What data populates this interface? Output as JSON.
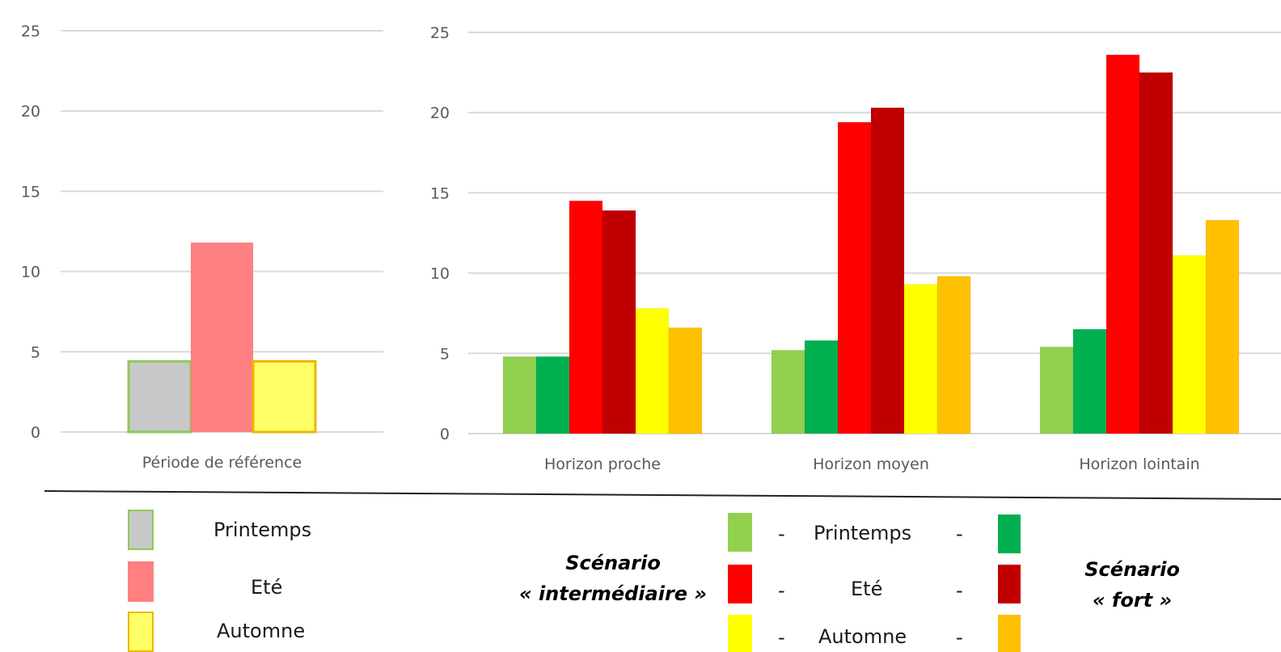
{
  "colors": {
    "ref_printemps": "#c8c8c8",
    "ref_printemps_border": "#8fc95a",
    "ref_ete": "#ff8080",
    "ref_automne": "#ffff66",
    "ref_automne_border": "#f0b400",
    "inter_printemps": "#92d050",
    "fort_printemps": "#00b050",
    "inter_ete": "#ff0000",
    "fort_ete": "#c00000",
    "inter_automne": "#ffff00",
    "fort_automne": "#ffc000"
  },
  "chart_data": [
    {
      "type": "bar",
      "categories": [
        "Période de référence"
      ],
      "series": [
        {
          "name": "Printemps",
          "values": [
            4.4
          ]
        },
        {
          "name": "Eté",
          "values": [
            11.8
          ]
        },
        {
          "name": "Automne",
          "values": [
            4.4
          ]
        }
      ],
      "ylim": [
        0,
        25
      ],
      "yticks": [
        0,
        5,
        10,
        15,
        20,
        25
      ],
      "grid": true
    },
    {
      "type": "bar",
      "categories": [
        "Horizon proche",
        "Horizon moyen",
        "Horizon lointain"
      ],
      "series": [
        {
          "name": "Printemps",
          "values": [
            4.8,
            5.2,
            5.4
          ]
        },
        {
          "name": "Printemps",
          "values": [
            4.8,
            5.8,
            6.5
          ]
        },
        {
          "name": "Eté",
          "values": [
            14.5,
            19.4,
            23.6
          ]
        },
        {
          "name": "Eté",
          "values": [
            13.9,
            20.3,
            22.5
          ]
        },
        {
          "name": "Automne",
          "values": [
            7.8,
            9.3,
            11.1
          ]
        },
        {
          "name": "Automne",
          "values": [
            6.6,
            9.8,
            13.3
          ]
        }
      ],
      "ylim": [
        0,
        25
      ],
      "yticks": [
        0,
        5,
        10,
        15,
        20,
        25
      ],
      "grid": true
    }
  ],
  "legend_left": {
    "items": [
      "Printemps",
      "Eté",
      "Automne"
    ]
  },
  "legend_right": {
    "left_title_line1": "Scénario",
    "left_title_line2": "« intermédiaire »",
    "right_title_line1": "Scénario",
    "right_title_line2": "« fort »",
    "items": [
      "Printemps",
      "Eté",
      "Automne"
    ],
    "dash": "-"
  }
}
